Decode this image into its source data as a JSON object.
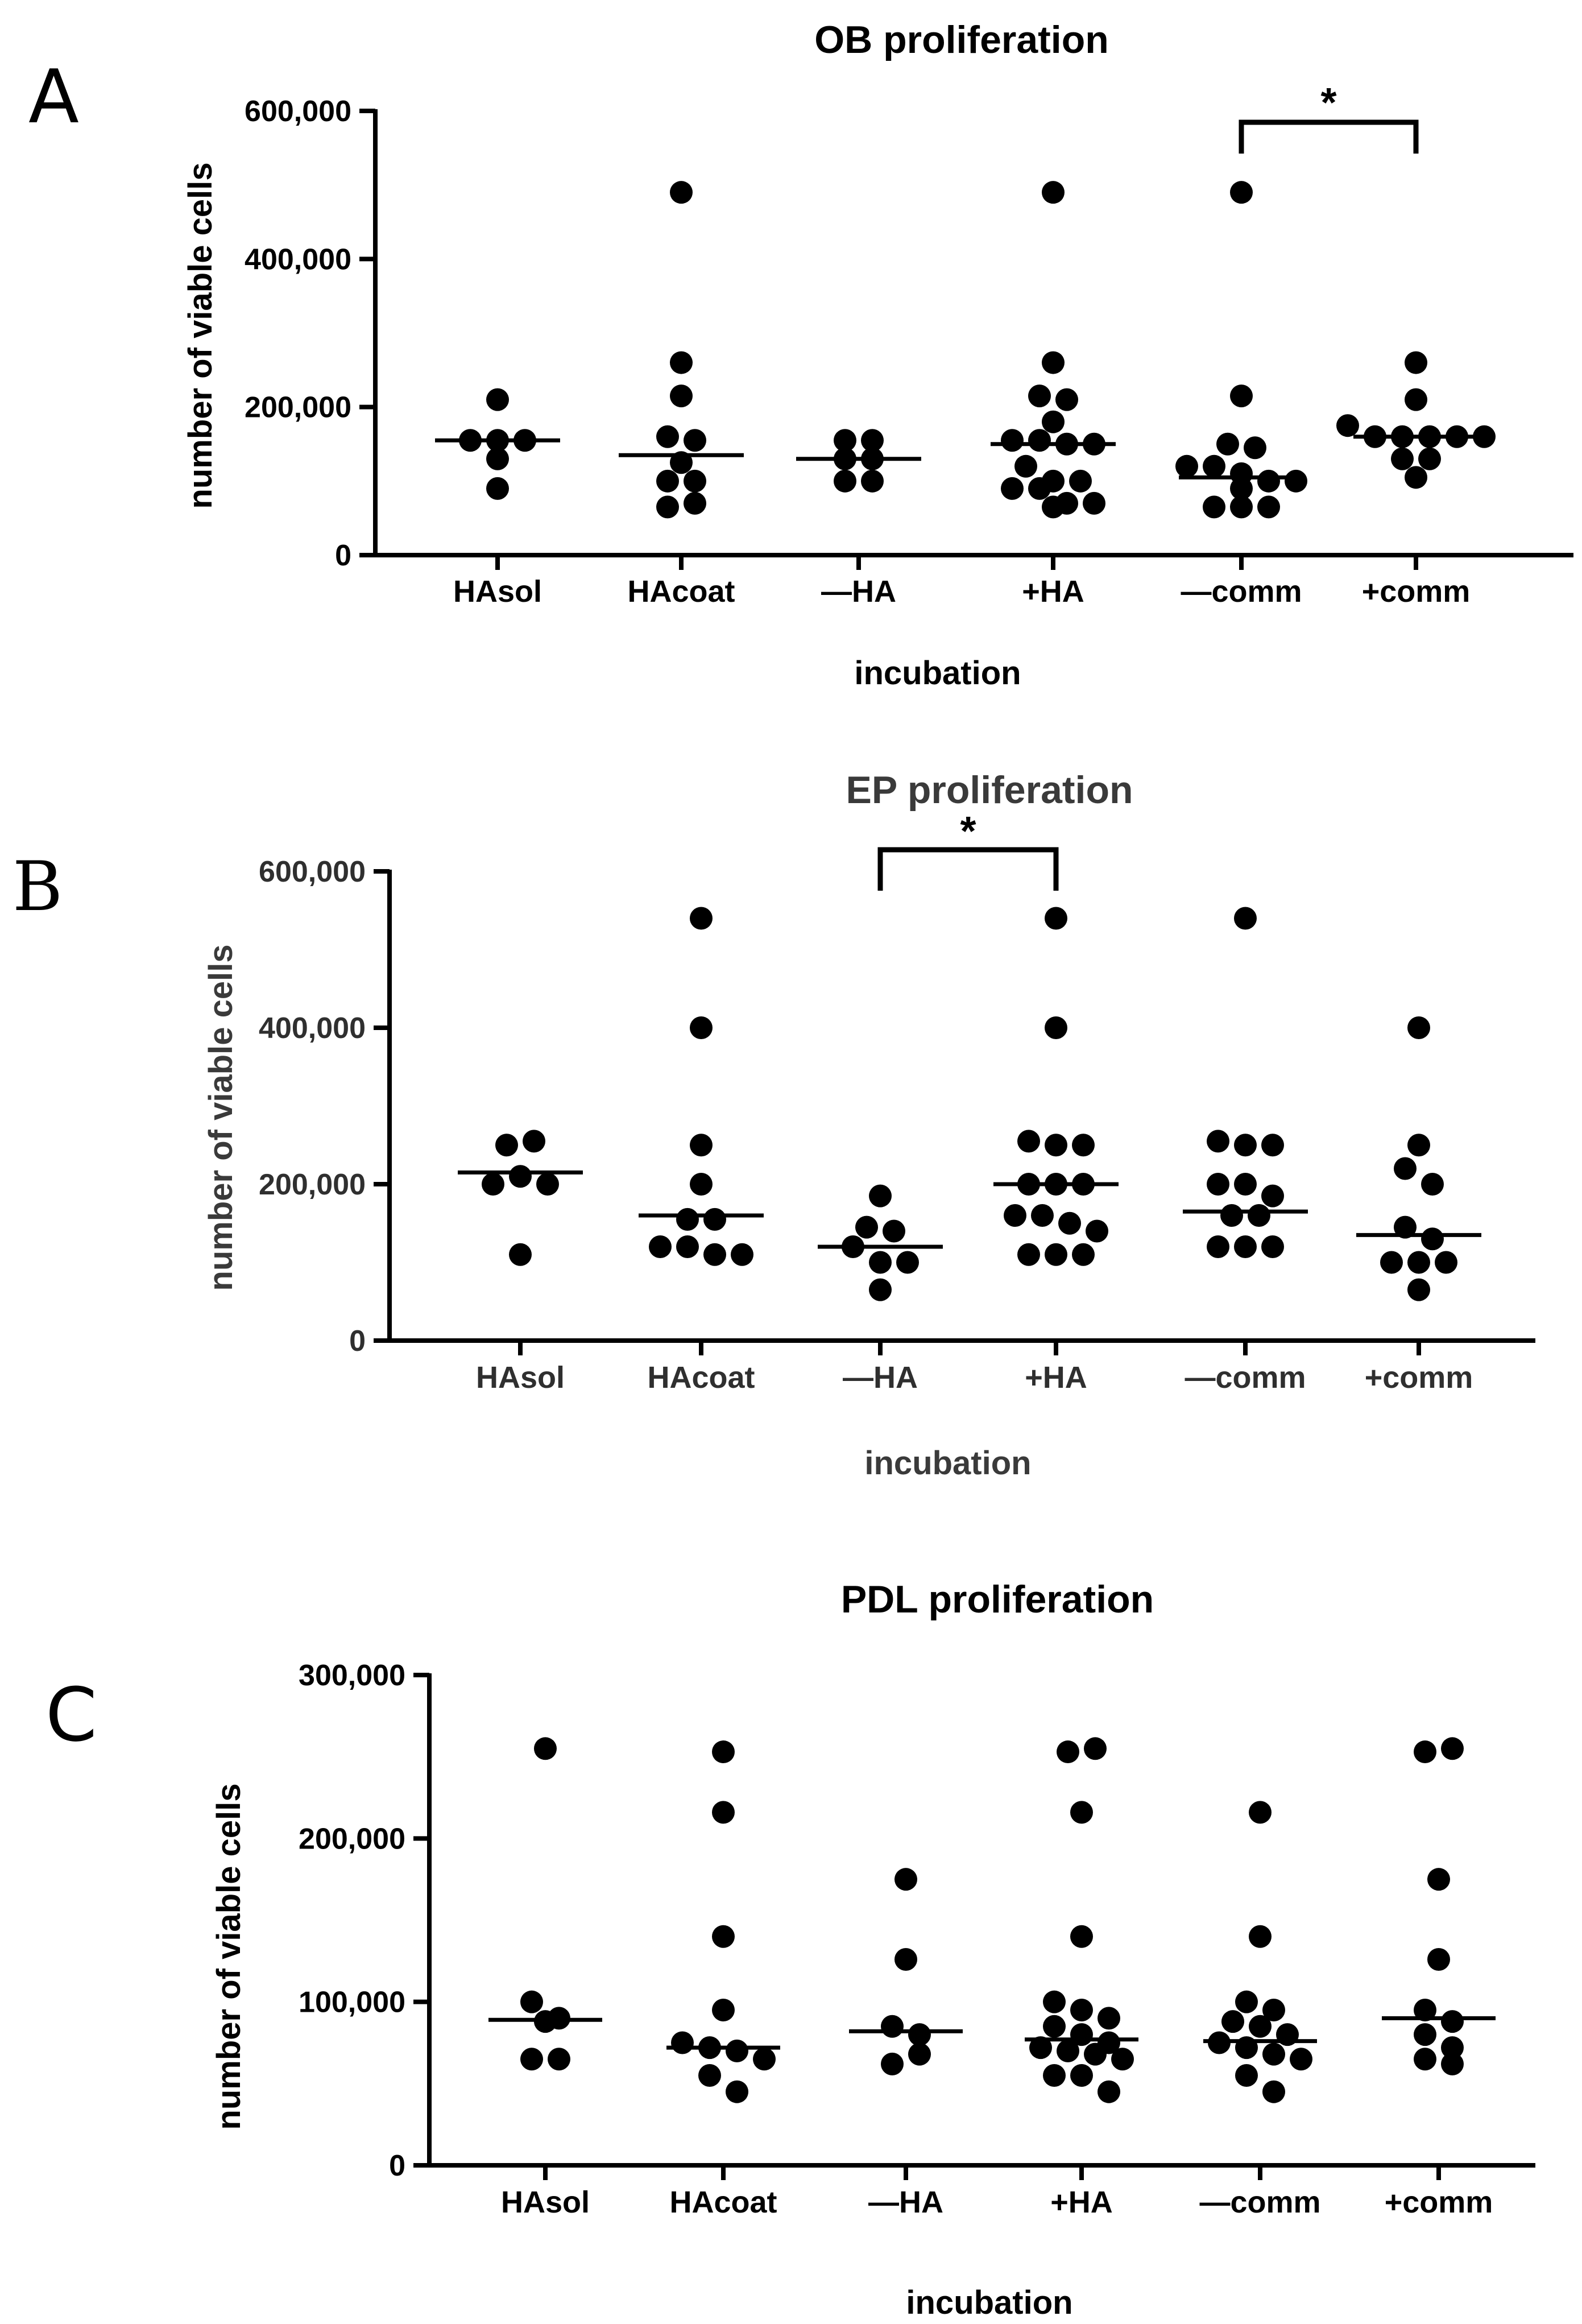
{
  "chart_data": [
    {
      "panel": "A",
      "type": "scatter",
      "title": "OB proliferation",
      "xlabel": "incubation",
      "ylabel": "number of viable cells",
      "ylim": [
        0,
        600000
      ],
      "yticks": [
        0,
        200000,
        400000,
        600000
      ],
      "ytick_labels": [
        "0",
        "200,000",
        "400,000",
        "600,000"
      ],
      "categories": [
        "HAsol",
        "HAcoat",
        "—HA",
        "+HA",
        "—comm",
        "+comm"
      ],
      "points": [
        [
          210000,
          155000,
          155000,
          155000,
          90000,
          130000
        ],
        [
          490000,
          260000,
          215000,
          160000,
          155000,
          125000,
          100000,
          100000,
          65000,
          70000
        ],
        [
          155000,
          155000,
          130000,
          100000,
          100000,
          130000
        ],
        [
          490000,
          260000,
          215000,
          210000,
          180000,
          155000,
          155000,
          150000,
          150000,
          120000,
          100000,
          100000,
          90000,
          90000,
          65000,
          70000,
          70000
        ],
        [
          490000,
          215000,
          150000,
          145000,
          120000,
          120000,
          110000,
          100000,
          100000,
          90000,
          65000,
          65000,
          65000
        ],
        [
          260000,
          210000,
          175000,
          160000,
          160000,
          160000,
          160000,
          160000,
          130000,
          130000,
          105000
        ]
      ],
      "medians": [
        155000,
        135000,
        130000,
        150000,
        105000,
        160000
      ],
      "significance": [
        {
          "from": "—comm",
          "to": "+comm",
          "label": "*"
        }
      ]
    },
    {
      "panel": "B",
      "type": "scatter",
      "title": "EP proliferation",
      "xlabel": "incubation",
      "ylabel": "number of viable cells",
      "ylim": [
        0,
        600000
      ],
      "yticks": [
        0,
        200000,
        400000,
        600000
      ],
      "ytick_labels": [
        "0",
        "200,000",
        "400,000",
        "600,000"
      ],
      "categories": [
        "HAsol",
        "HAcoat",
        "—HA",
        "+HA",
        "—comm",
        "+comm"
      ],
      "points": [
        [
          250000,
          255000,
          200000,
          210000,
          200000,
          110000
        ],
        [
          540000,
          400000,
          250000,
          200000,
          155000,
          155000,
          120000,
          120000,
          110000,
          110000
        ],
        [
          185000,
          145000,
          140000,
          120000,
          100000,
          100000,
          65000
        ],
        [
          540000,
          400000,
          255000,
          250000,
          250000,
          200000,
          200000,
          200000,
          160000,
          160000,
          150000,
          140000,
          110000,
          110000,
          110000
        ],
        [
          540000,
          255000,
          250000,
          250000,
          200000,
          200000,
          185000,
          160000,
          160000,
          120000,
          120000,
          120000
        ],
        [
          400000,
          250000,
          220000,
          200000,
          145000,
          130000,
          100000,
          100000,
          100000,
          65000
        ]
      ],
      "medians": [
        215000,
        160000,
        120000,
        200000,
        165000,
        135000
      ],
      "significance": [
        {
          "from": "—HA",
          "to": "+HA",
          "label": "*"
        }
      ]
    },
    {
      "panel": "C",
      "type": "scatter",
      "title": "PDL proliferation",
      "xlabel": "incubation",
      "ylabel": "number of viable cells",
      "ylim": [
        0,
        300000
      ],
      "yticks": [
        0,
        100000,
        200000,
        300000
      ],
      "ytick_labels": [
        "0",
        "100,000",
        "200,000",
        "300,000"
      ],
      "categories": [
        "HAsol",
        "HAcoat",
        "—HA",
        "+HA",
        "—comm",
        "+comm"
      ],
      "points": [
        [
          255000,
          100000,
          90000,
          88000,
          65000,
          65000
        ],
        [
          253000,
          216000,
          140000,
          95000,
          75000,
          72000,
          70000,
          65000,
          55000,
          45000
        ],
        [
          175000,
          126000,
          85000,
          80000,
          62000,
          68000
        ],
        [
          253000,
          255000,
          216000,
          140000,
          100000,
          95000,
          90000,
          85000,
          80000,
          75000,
          72000,
          70000,
          68000,
          65000,
          55000,
          55000,
          45000
        ],
        [
          216000,
          140000,
          100000,
          95000,
          88000,
          85000,
          80000,
          75000,
          72000,
          68000,
          65000,
          55000,
          45000
        ],
        [
          253000,
          255000,
          175000,
          126000,
          95000,
          88000,
          80000,
          72000,
          65000,
          62000
        ]
      ],
      "medians": [
        89000,
        72000,
        82000,
        77000,
        76000,
        90000
      ],
      "significance": []
    }
  ],
  "panel_letters": [
    "A",
    "B",
    "C"
  ]
}
